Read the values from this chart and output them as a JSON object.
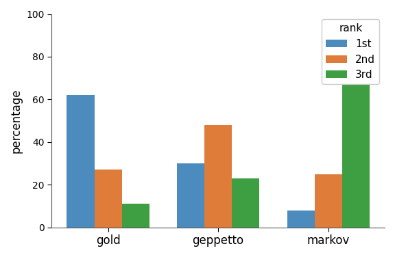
{
  "categories": [
    "gold",
    "geppetto",
    "markov"
  ],
  "series": {
    "1st": [
      62,
      30,
      8
    ],
    "2nd": [
      27,
      48,
      25
    ],
    "3rd": [
      11,
      23,
      67
    ]
  },
  "colors": {
    "1st": "#4c8bbe",
    "2nd": "#e07c39",
    "3rd": "#3e9e42"
  },
  "ylabel": "percentage",
  "legend_title": "rank",
  "ylim": [
    0,
    100
  ],
  "yticks": [
    0,
    20,
    40,
    60,
    80,
    100
  ],
  "bar_width": 0.25,
  "background_color": "#ffffff"
}
